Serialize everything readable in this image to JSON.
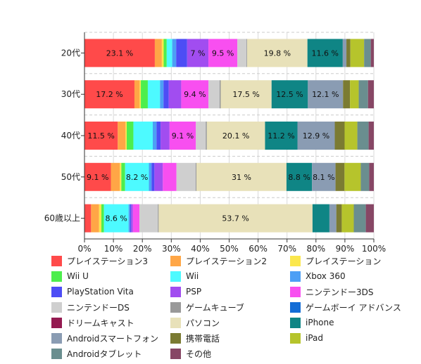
{
  "chart_data": {
    "type": "bar",
    "orientation": "horizontal",
    "stacked": "percent",
    "categories": [
      "20代",
      "30代",
      "40代",
      "50代",
      "60歳以上"
    ],
    "x_ticks": [
      "0%",
      "10%",
      "20%",
      "30%",
      "40%",
      "50%",
      "60%",
      "70%",
      "80%",
      "90%",
      "100%"
    ],
    "xlim": [
      0,
      100
    ],
    "grid": true,
    "legend_position": "bottom",
    "series": [
      {
        "name": "プレイステーション3",
        "color": "#ff4a4a",
        "values": [
          23.1,
          17.2,
          11.5,
          9.1,
          2.3
        ],
        "labels": [
          "23.1 %",
          "17.2 %",
          "11.5 %",
          "9.1 %",
          ""
        ]
      },
      {
        "name": "プレイステーション2",
        "color": "#ffa646",
        "values": [
          2.3,
          1.8,
          2.7,
          3.1,
          2.8
        ],
        "labels": [
          "",
          "",
          "",
          "",
          ""
        ]
      },
      {
        "name": "プレイステーション",
        "color": "#fbe74c",
        "values": [
          0.6,
          0.4,
          0.4,
          0.5,
          0.8
        ],
        "labels": [
          "",
          "",
          "",
          "",
          ""
        ]
      },
      {
        "name": "Wii U",
        "color": "#4dee4d",
        "values": [
          1.0,
          2.4,
          2.3,
          1.3,
          0.9
        ],
        "labels": [
          "",
          "",
          "",
          "",
          ""
        ]
      },
      {
        "name": "Wii",
        "color": "#4dfaff",
        "values": [
          1.8,
          4.2,
          6.7,
          8.2,
          8.6
        ],
        "labels": [
          "",
          "",
          "",
          "8.2 %",
          "8.6 %"
        ]
      },
      {
        "name": "Xbox 360",
        "color": "#4d9ff5",
        "values": [
          1.3,
          1.2,
          1.3,
          0.9,
          0.5
        ],
        "labels": [
          "",
          "",
          "",
          "",
          ""
        ]
      },
      {
        "name": "PlayStation Vita",
        "color": "#4d4df5",
        "values": [
          3.6,
          1.8,
          1.4,
          1.0,
          0.4
        ],
        "labels": [
          "",
          "",
          "",
          "",
          ""
        ]
      },
      {
        "name": "PSP",
        "color": "#a14df0",
        "values": [
          7.0,
          4.3,
          3.1,
          2.9,
          0.6
        ],
        "labels": [
          "7 %",
          "",
          "",
          "",
          ""
        ]
      },
      {
        "name": "ニンテンドー3DS",
        "color": "#f84ff0",
        "values": [
          9.5,
          9.4,
          9.1,
          4.7,
          2.3
        ],
        "labels": [
          "9.5 %",
          "9.4 %",
          "9.1 %",
          "",
          ""
        ]
      },
      {
        "name": "ニンテンドーDS",
        "color": "#cfcfcf",
        "values": [
          3.0,
          3.8,
          3.4,
          6.6,
          6.4
        ],
        "labels": [
          "",
          "",
          "",
          "",
          ""
        ]
      },
      {
        "name": "ゲームキューブ",
        "color": "#999999",
        "values": [
          0.2,
          0.4,
          0.4,
          0.3,
          0.3
        ],
        "labels": [
          "",
          "",
          "",
          "",
          ""
        ]
      },
      {
        "name": "ゲームボーイ アドバンス",
        "color": "#136dd6",
        "values": [
          0.0,
          0.0,
          0.0,
          0.0,
          0.0
        ],
        "labels": [
          "",
          "",
          "",
          "",
          ""
        ]
      },
      {
        "name": "ドリームキャスト",
        "color": "#941a51",
        "values": [
          0.0,
          0.0,
          0.0,
          0.0,
          0.0
        ],
        "labels": [
          "",
          "",
          "",
          "",
          ""
        ]
      },
      {
        "name": "パソコン",
        "color": "#e8e1b9",
        "values": [
          19.8,
          17.5,
          20.1,
          31.0,
          53.7
        ],
        "labels": [
          "19.8 %",
          "17.5 %",
          "20.1 %",
          "31 %",
          "53.7 %"
        ]
      },
      {
        "name": "iPhone",
        "color": "#0f8585",
        "values": [
          11.6,
          12.5,
          11.2,
          8.8,
          5.9
        ],
        "labels": [
          "11.6 %",
          "12.5 %",
          "11.2 %",
          "8.8 %",
          ""
        ]
      },
      {
        "name": "Androidスマートフォン",
        "color": "#8a9cb3",
        "values": [
          1.2,
          12.1,
          12.9,
          8.1,
          2.4
        ],
        "labels": [
          "",
          "12.1 %",
          "12.9 %",
          "8.1 %",
          ""
        ]
      },
      {
        "name": "携帯電話",
        "color": "#7b7b32",
        "values": [
          1.3,
          2.4,
          3.4,
          3.1,
          1.9
        ],
        "labels": [
          "",
          "",
          "",
          "",
          ""
        ]
      },
      {
        "name": "iPad",
        "color": "#b6c42c",
        "values": [
          4.5,
          3.0,
          4.4,
          5.6,
          4.2
        ],
        "labels": [
          "",
          "",
          "",
          "",
          ""
        ]
      },
      {
        "name": "Androidタブレット",
        "color": "#6a8e8f",
        "values": [
          2.2,
          3.2,
          3.9,
          2.9,
          4.2
        ],
        "labels": [
          "",
          "",
          "",
          "",
          ""
        ]
      },
      {
        "name": "その他",
        "color": "#874765",
        "values": [
          1.0,
          2.0,
          1.8,
          1.6,
          2.8
        ],
        "labels": [
          "",
          "",
          "",
          "",
          ""
        ]
      }
    ]
  }
}
